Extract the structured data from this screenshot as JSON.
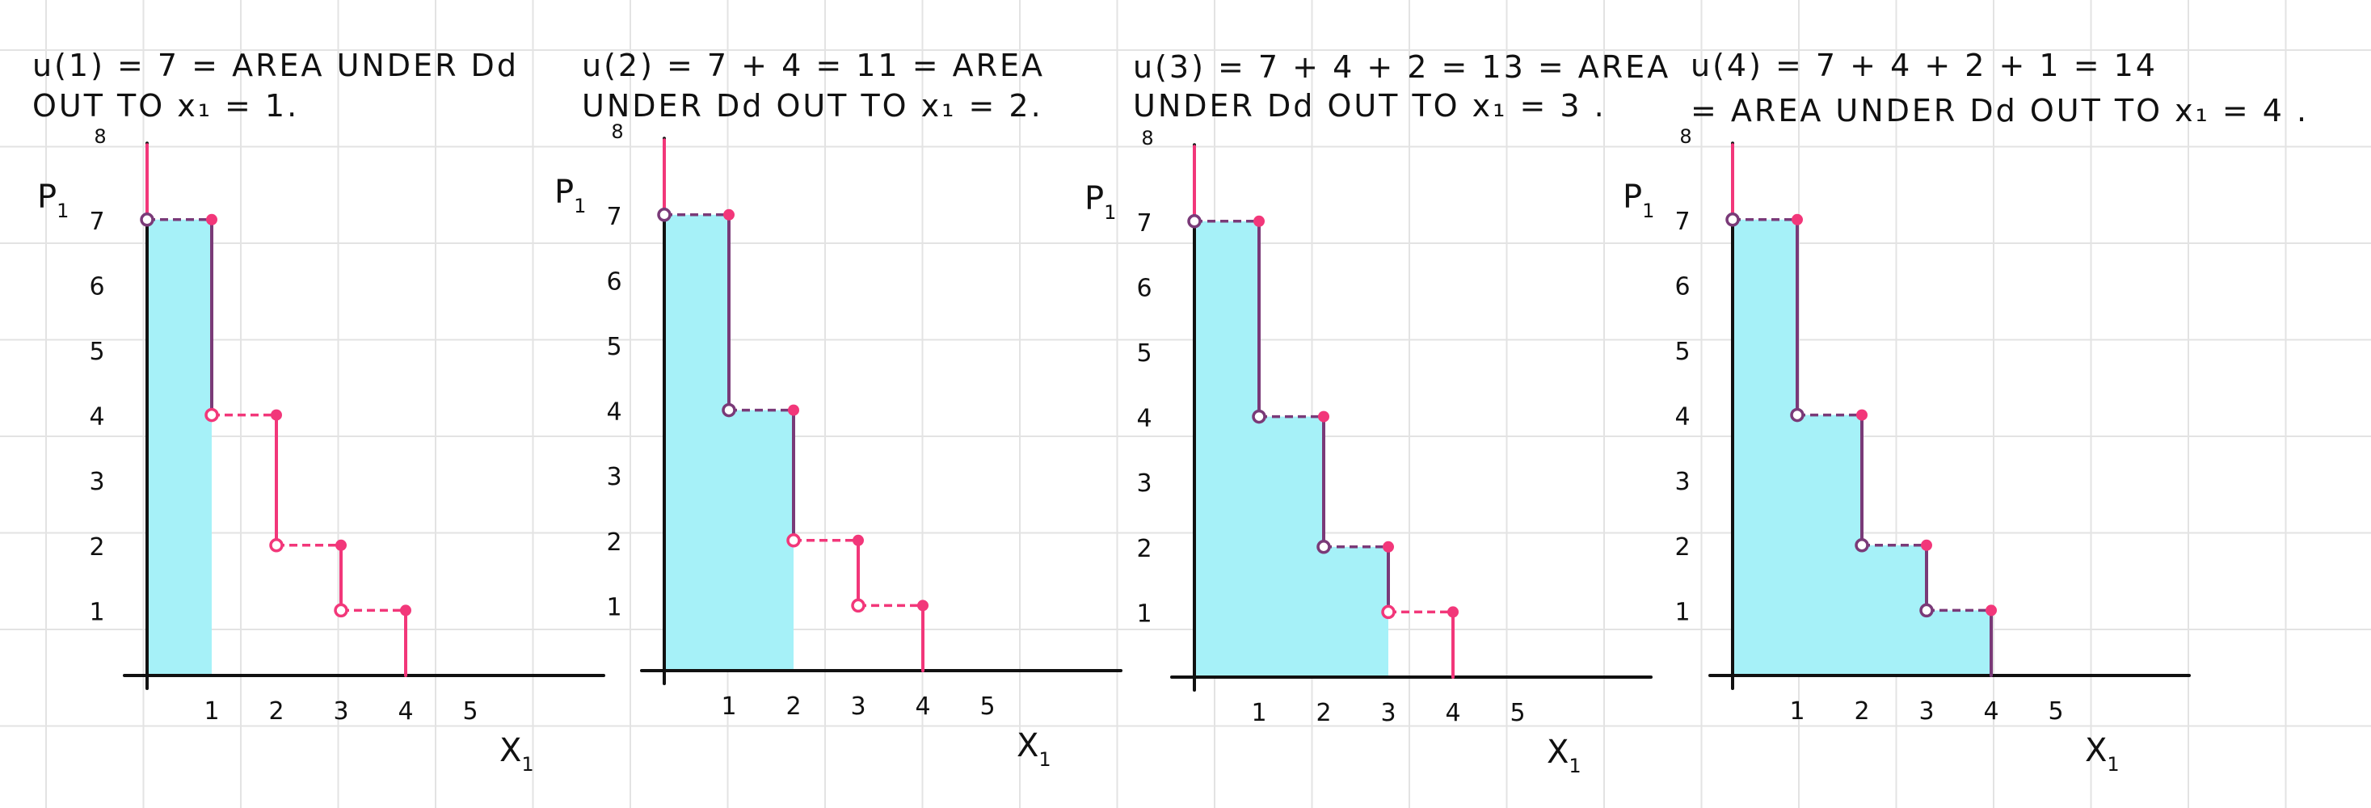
{
  "colors": {
    "fill": "#a6f1f8",
    "curve": "#f2377a",
    "overlap": "#7a3a78",
    "axis": "#111111",
    "grid": "#e3e3e3"
  },
  "chart_data": [
    {
      "type": "area",
      "caption": [
        "u(1) = 7 = AREA UNDER Dd",
        "OUT TO x₁ = 1."
      ],
      "xlabel": "X",
      "xlabel_sub": "1",
      "ylabel": "P",
      "ylabel_sub": "1",
      "xticks": [
        "1",
        "2",
        "3",
        "4",
        "5"
      ],
      "yticks": [
        "1",
        "2",
        "3",
        "4",
        "5",
        "6",
        "7",
        "8"
      ],
      "xlim": [
        0,
        7
      ],
      "ylim": [
        0,
        8
      ],
      "steps": [
        {
          "x": 1,
          "price": 7
        },
        {
          "x": 2,
          "price": 4
        },
        {
          "x": 3,
          "price": 2
        },
        {
          "x": 4,
          "price": 1
        }
      ],
      "shaded_to": 1
    },
    {
      "type": "area",
      "caption": [
        "u(2) = 7 + 4 = 11  = AREA",
        "UNDER Dd OUT TO x₁ = 2."
      ],
      "xlabel": "X",
      "xlabel_sub": "1",
      "ylabel": "P",
      "ylabel_sub": "1",
      "xticks": [
        "1",
        "2",
        "3",
        "4",
        "5"
      ],
      "yticks": [
        "1",
        "2",
        "3",
        "4",
        "5",
        "6",
        "7",
        "8"
      ],
      "xlim": [
        0,
        7
      ],
      "ylim": [
        0,
        8
      ],
      "steps": [
        {
          "x": 1,
          "price": 7
        },
        {
          "x": 2,
          "price": 4
        },
        {
          "x": 3,
          "price": 2
        },
        {
          "x": 4,
          "price": 1
        }
      ],
      "shaded_to": 2
    },
    {
      "type": "area",
      "caption": [
        "u(3) = 7 + 4 + 2 = 13 = AREA",
        "UNDER Dd OUT TO x₁ = 3 ."
      ],
      "xlabel": "X",
      "xlabel_sub": "1",
      "ylabel": "P",
      "ylabel_sub": "1",
      "xticks": [
        "1",
        "2",
        "3",
        "4",
        "5"
      ],
      "yticks": [
        "1",
        "2",
        "3",
        "4",
        "5",
        "6",
        "7",
        "8"
      ],
      "xlim": [
        0,
        7
      ],
      "ylim": [
        0,
        8
      ],
      "steps": [
        {
          "x": 1,
          "price": 7
        },
        {
          "x": 2,
          "price": 4
        },
        {
          "x": 3,
          "price": 2
        },
        {
          "x": 4,
          "price": 1
        }
      ],
      "shaded_to": 3
    },
    {
      "type": "area",
      "caption": [
        "u(4) = 7 + 4 + 2 + 1 = 14",
        "= AREA UNDER Dd OUT TO x₁ = 4 ."
      ],
      "xlabel": "X",
      "xlabel_sub": "1",
      "ylabel": "P",
      "ylabel_sub": "1",
      "xticks": [
        "1",
        "2",
        "3",
        "4",
        "5"
      ],
      "yticks": [
        "1",
        "2",
        "3",
        "4",
        "5",
        "6",
        "7",
        "8"
      ],
      "xlim": [
        0,
        7
      ],
      "ylim": [
        0,
        8
      ],
      "steps": [
        {
          "x": 1,
          "price": 7
        },
        {
          "x": 2,
          "price": 4
        },
        {
          "x": 3,
          "price": 2
        },
        {
          "x": 4,
          "price": 1
        }
      ],
      "shaded_to": 4
    }
  ]
}
